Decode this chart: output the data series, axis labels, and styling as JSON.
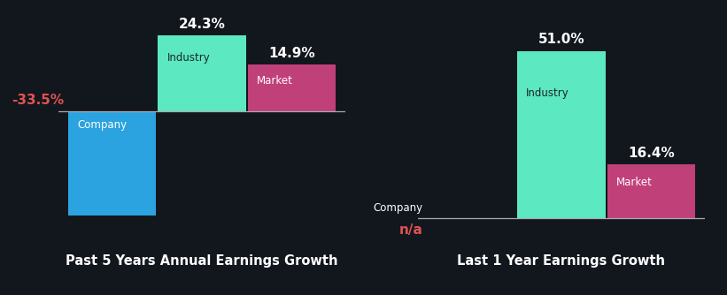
{
  "background_color": "#12171e",
  "chart1": {
    "title": "Past 5 Years Annual Earnings Growth",
    "bars": [
      {
        "label": "Company",
        "value": -33.5,
        "color": "#2ba3e0",
        "text_color": "#ffffff",
        "value_color": "#e05252"
      },
      {
        "label": "Industry",
        "value": 24.3,
        "color": "#5ce8c0",
        "text_color": "#1a2530",
        "value_color": "#ffffff"
      },
      {
        "label": "Market",
        "value": 14.9,
        "color": "#c0407a",
        "text_color": "#ffffff",
        "value_color": "#ffffff"
      }
    ]
  },
  "chart2": {
    "title": "Last 1 Year Earnings Growth",
    "bars": [
      {
        "label": "Company",
        "value": null,
        "display": "n/a",
        "color": null,
        "text_color": "#ffffff",
        "value_color": "#e05252"
      },
      {
        "label": "Industry",
        "value": 51.0,
        "color": "#5ce8c0",
        "text_color": "#1a2530",
        "value_color": "#ffffff"
      },
      {
        "label": "Market",
        "value": 16.4,
        "color": "#c0407a",
        "text_color": "#ffffff",
        "value_color": "#ffffff"
      }
    ]
  },
  "title_fontsize": 10.5,
  "label_fontsize": 8.5,
  "value_fontsize": 11
}
